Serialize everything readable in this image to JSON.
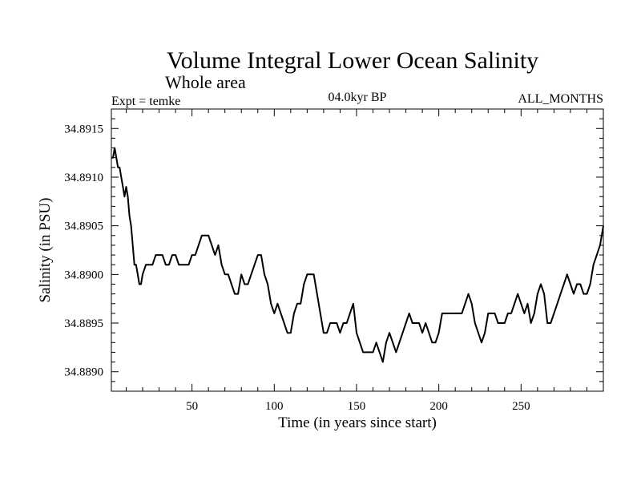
{
  "chart_data": {
    "type": "line",
    "title": "Volume Integral Lower Ocean Salinity",
    "subtitle": "Whole area",
    "left_label": "Expt = temke",
    "center_label": "04.0kyr BP",
    "right_label": "ALL_MONTHS",
    "xlabel": "Time (in years since start)",
    "ylabel": "Salinity (in PSU)",
    "xlim": [
      1,
      300
    ],
    "ylim": [
      34.8888,
      34.8917
    ],
    "xticks": [
      50,
      100,
      150,
      200,
      250
    ],
    "xtick_labels": [
      "50",
      "100",
      "150",
      "200",
      "250"
    ],
    "yticks": [
      34.889,
      34.8895,
      34.89,
      34.8905,
      34.891,
      34.8915
    ],
    "ytick_labels": [
      "34.8890",
      "34.8895",
      "34.8900",
      "34.8905",
      "34.8910",
      "34.8915"
    ],
    "grid": false,
    "series": [
      {
        "name": "Salinity",
        "color": "#000000",
        "x": [
          1,
          2,
          3,
          4,
          5,
          6,
          7,
          8,
          9,
          10,
          11,
          12,
          13,
          14,
          15,
          16,
          17,
          18,
          19,
          20,
          22,
          24,
          26,
          28,
          30,
          32,
          34,
          36,
          38,
          40,
          42,
          44,
          46,
          48,
          50,
          52,
          54,
          56,
          58,
          60,
          62,
          64,
          66,
          68,
          70,
          72,
          74,
          76,
          78,
          80,
          82,
          84,
          86,
          88,
          90,
          92,
          94,
          96,
          98,
          100,
          102,
          104,
          106,
          108,
          110,
          112,
          114,
          116,
          118,
          120,
          122,
          124,
          126,
          128,
          130,
          132,
          134,
          136,
          138,
          140,
          142,
          144,
          146,
          148,
          150,
          152,
          154,
          156,
          158,
          160,
          162,
          164,
          166,
          168,
          170,
          172,
          174,
          176,
          178,
          180,
          182,
          184,
          186,
          188,
          190,
          192,
          194,
          196,
          198,
          200,
          202,
          204,
          206,
          208,
          210,
          212,
          214,
          216,
          218,
          220,
          222,
          224,
          226,
          228,
          230,
          232,
          234,
          236,
          238,
          240,
          242,
          244,
          246,
          248,
          250,
          252,
          254,
          256,
          258,
          260,
          262,
          264,
          266,
          268,
          270,
          272,
          274,
          276,
          278,
          280,
          282,
          284,
          286,
          288,
          290,
          292,
          294,
          296,
          298,
          300
        ],
        "values": [
          34.8912,
          34.8912,
          34.8913,
          34.8912,
          34.8911,
          34.8911,
          34.891,
          34.8909,
          34.8908,
          34.8909,
          34.8908,
          34.8906,
          34.8905,
          34.8903,
          34.8901,
          34.8901,
          34.89,
          34.8899,
          34.8899,
          34.89,
          34.8901,
          34.8901,
          34.8901,
          34.8902,
          34.8902,
          34.8902,
          34.8901,
          34.8901,
          34.8902,
          34.8902,
          34.8901,
          34.8901,
          34.8901,
          34.8901,
          34.8902,
          34.8902,
          34.8903,
          34.8904,
          34.8904,
          34.8904,
          34.8903,
          34.8902,
          34.8903,
          34.8901,
          34.89,
          34.89,
          34.8899,
          34.8898,
          34.8898,
          34.89,
          34.8899,
          34.8899,
          34.89,
          34.8901,
          34.8902,
          34.8902,
          34.89,
          34.8899,
          34.8897,
          34.8896,
          34.8897,
          34.8896,
          34.8895,
          34.8894,
          34.8894,
          34.8896,
          34.8897,
          34.8897,
          34.8899,
          34.89,
          34.89,
          34.89,
          34.8898,
          34.8896,
          34.8894,
          34.8894,
          34.8895,
          34.8895,
          34.8895,
          34.8894,
          34.8895,
          34.8895,
          34.8896,
          34.8897,
          34.8894,
          34.8893,
          34.8892,
          34.8892,
          34.8892,
          34.8892,
          34.8893,
          34.8892,
          34.8891,
          34.8893,
          34.8894,
          34.8893,
          34.8892,
          34.8893,
          34.8894,
          34.8895,
          34.8896,
          34.8895,
          34.8895,
          34.8895,
          34.8894,
          34.8895,
          34.8894,
          34.8893,
          34.8893,
          34.8894,
          34.8896,
          34.8896,
          34.8896,
          34.8896,
          34.8896,
          34.8896,
          34.8896,
          34.8897,
          34.8898,
          34.8897,
          34.8895,
          34.8894,
          34.8893,
          34.8894,
          34.8896,
          34.8896,
          34.8896,
          34.8895,
          34.8895,
          34.8895,
          34.8896,
          34.8896,
          34.8897,
          34.8898,
          34.8897,
          34.8896,
          34.8897,
          34.8895,
          34.8896,
          34.8898,
          34.8899,
          34.8898,
          34.8895,
          34.8895,
          34.8896,
          34.8897,
          34.8898,
          34.8899,
          34.89,
          34.8899,
          34.8898,
          34.8899,
          34.8899,
          34.8898,
          34.8898,
          34.8899,
          34.8901,
          34.8902,
          34.8903,
          34.8905
        ]
      }
    ]
  }
}
